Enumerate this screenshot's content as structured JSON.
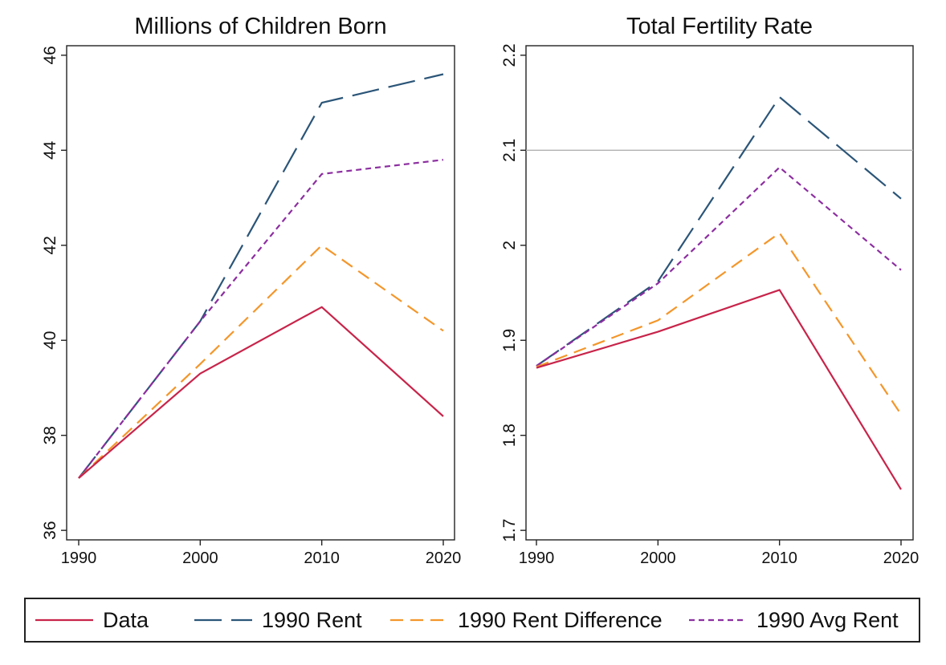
{
  "chart_data": [
    {
      "type": "line",
      "title": "Millions of Children Born",
      "xlabel": "",
      "ylabel": "",
      "x": [
        1990,
        2000,
        2010,
        2020
      ],
      "xlim": [
        1990,
        2020
      ],
      "ylim": [
        35.8,
        46.2
      ],
      "xticks": [
        "1990",
        "2000",
        "2010",
        "2020"
      ],
      "yticks": [
        "36",
        "38",
        "40",
        "42",
        "44",
        "46"
      ],
      "ytick_values": [
        36,
        38,
        40,
        42,
        44,
        46
      ],
      "grid": false,
      "reference_line": null,
      "series": [
        {
          "name": "Data",
          "values": [
            37.1,
            39.3,
            40.7,
            38.4
          ]
        },
        {
          "name": "1990 Rent",
          "values": [
            37.1,
            40.4,
            45.0,
            45.6
          ]
        },
        {
          "name": "1990 Rent Difference",
          "values": [
            37.1,
            39.5,
            42.0,
            40.2
          ]
        },
        {
          "name": "1990 Avg Rent",
          "values": [
            37.1,
            40.4,
            43.5,
            43.8
          ]
        }
      ]
    },
    {
      "type": "line",
      "title": "Total Fertility Rate",
      "xlabel": "",
      "ylabel": "",
      "x": [
        1990,
        2000,
        2010,
        2020
      ],
      "xlim": [
        1990,
        2020
      ],
      "ylim": [
        1.69,
        2.21
      ],
      "xticks": [
        "1990",
        "2000",
        "2010",
        "2020"
      ],
      "yticks": [
        "1.7",
        "1.8",
        "1.9",
        "2",
        "2.1",
        "2.2"
      ],
      "ytick_values": [
        1.7,
        1.8,
        1.9,
        2.0,
        2.1,
        2.2
      ],
      "grid": false,
      "reference_line": 2.1,
      "series": [
        {
          "name": "Data",
          "values": [
            1.871,
            1.909,
            1.953,
            1.743
          ]
        },
        {
          "name": "1990 Rent",
          "values": [
            1.873,
            1.962,
            2.156,
            2.049
          ]
        },
        {
          "name": "1990 Rent Difference",
          "values": [
            1.872,
            1.921,
            2.013,
            1.822
          ]
        },
        {
          "name": "1990 Avg Rent",
          "values": [
            1.873,
            1.96,
            2.082,
            1.974
          ]
        }
      ]
    }
  ],
  "legend": {
    "placement": "bottom",
    "items": [
      {
        "label": "Data",
        "color": "#c8244a",
        "dash": "solid"
      },
      {
        "label": "1990 Rent",
        "color": "#2b5578",
        "dash": "long-dash"
      },
      {
        "label": "1990 Rent Difference",
        "color": "#f4962a",
        "dash": "dash"
      },
      {
        "label": "1990 Avg Rent",
        "color": "#8c2ea0",
        "dash": "short-dash"
      }
    ]
  },
  "colors": {
    "data": "#c8244a",
    "rent_1990": "#2b5578",
    "rent_difference": "#f4962a",
    "avg_rent": "#8c2ea0",
    "reference_line": "#b0b0b0",
    "axis": "#222222"
  }
}
